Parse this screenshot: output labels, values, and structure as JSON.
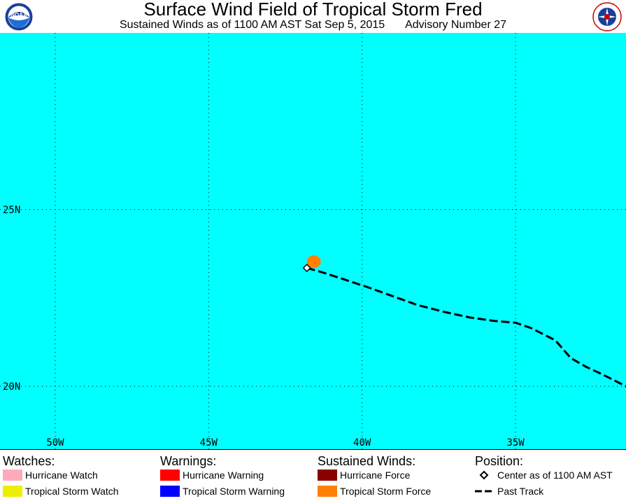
{
  "header": {
    "title": "Surface Wind Field of Tropical Storm Fred",
    "subtitle_left": "Sustained Winds as of 1100 AM AST Sat Sep 5, 2015",
    "subtitle_right": "Advisory Number 27",
    "noaa_logo_text": "NOAA",
    "nws_logo_text": "NATIONAL WEATHER SERVICE"
  },
  "map": {
    "ocean_color": "#00ffff",
    "grid": "dotted",
    "lat_labels": [
      "25N",
      "20N"
    ],
    "lon_labels": [
      "50W",
      "45W",
      "40W",
      "35W"
    ],
    "lat_range": [
      18.2,
      30.0
    ],
    "lon_range": [
      -51.8,
      -31.4
    ],
    "storm": {
      "center_lat": 23.35,
      "center_lon": -41.8,
      "ts_wind_field_color": "#ff8000",
      "past_track": [
        [
          23.35,
          -41.8
        ],
        [
          23.2,
          -41.2
        ],
        [
          23.0,
          -40.5
        ],
        [
          22.8,
          -39.8
        ],
        [
          22.55,
          -39.0
        ],
        [
          22.3,
          -38.2
        ],
        [
          22.1,
          -37.3
        ],
        [
          21.95,
          -36.5
        ],
        [
          21.85,
          -35.7
        ],
        [
          21.8,
          -35.0
        ],
        [
          21.65,
          -34.5
        ],
        [
          21.3,
          -33.7
        ],
        [
          20.8,
          -33.2
        ],
        [
          20.55,
          -32.7
        ],
        [
          20.35,
          -32.2
        ],
        [
          20.0,
          -31.4
        ]
      ]
    }
  },
  "legend": {
    "watches": {
      "heading": "Watches:",
      "items": [
        {
          "label": "Hurricane Watch",
          "color": "#ffaabb"
        },
        {
          "label": "Tropical Storm Watch",
          "color": "#eeee00"
        }
      ]
    },
    "warnings": {
      "heading": "Warnings:",
      "items": [
        {
          "label": "Hurricane Warning",
          "color": "#ff0000"
        },
        {
          "label": "Tropical Storm Warning",
          "color": "#0000ff"
        }
      ]
    },
    "winds": {
      "heading": "Sustained Winds:",
      "items": [
        {
          "label": "Hurricane Force",
          "color": "#880000"
        },
        {
          "label": "Tropical Storm Force",
          "color": "#ff8000"
        }
      ]
    },
    "position": {
      "heading": "Position:",
      "items": [
        {
          "label": "Center as of 1100 AM AST",
          "icon": "diamond-icon"
        },
        {
          "label": "Past Track",
          "icon": "dashed-line-icon"
        }
      ]
    }
  }
}
